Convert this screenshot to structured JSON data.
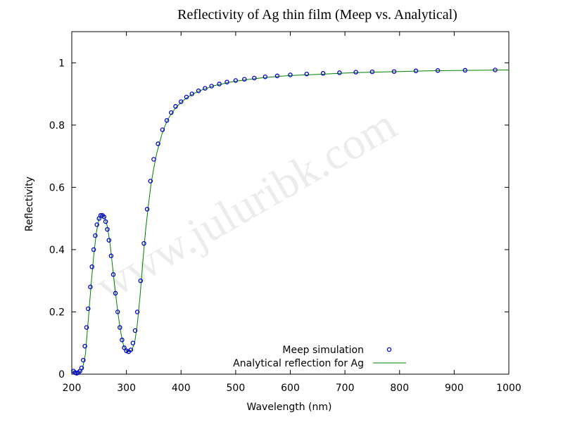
{
  "chart_data": {
    "type": "scatter",
    "title": "Reflectivity of Ag thin film (Meep vs. Analytical)",
    "xlabel": "Wavelength (nm)",
    "ylabel": "Reflectivity",
    "xlim": [
      200,
      1000
    ],
    "ylim": [
      0,
      1.1
    ],
    "x_ticks": [
      200,
      300,
      400,
      500,
      600,
      700,
      800,
      900,
      1000
    ],
    "y_ticks": [
      0,
      0.2,
      0.4,
      0.6,
      0.8,
      1
    ],
    "x_tick_labels": [
      "200",
      "300",
      "400",
      "500",
      "600",
      "700",
      "800",
      "900",
      "1000"
    ],
    "y_tick_labels": [
      "0",
      "0.2",
      "0.4",
      "0.6",
      "0.8",
      "1"
    ],
    "grid": false,
    "legend_position": "bottom-center",
    "watermark": "www.juluribk.com",
    "series": [
      {
        "name": "Meep simulation",
        "style": "markers",
        "color": "#0000cc",
        "x": [
          203,
          206,
          209,
          212,
          215,
          218,
          221,
          224,
          227,
          230,
          234,
          237,
          240,
          243,
          246,
          250,
          253,
          256,
          259,
          262,
          265,
          268,
          272,
          276,
          280,
          284,
          288,
          292,
          296,
          300,
          304,
          308,
          312,
          316,
          320,
          326,
          332,
          338,
          344,
          350,
          358,
          366,
          374,
          382,
          390,
          400,
          410,
          420,
          432,
          444,
          456,
          470,
          484,
          500,
          516,
          534,
          554,
          576,
          600,
          630,
          660,
          690,
          720,
          750,
          790,
          830,
          870,
          920,
          975
        ],
        "y": [
          0.01,
          0.005,
          0.003,
          0.005,
          0.01,
          0.02,
          0.045,
          0.09,
          0.15,
          0.21,
          0.28,
          0.345,
          0.4,
          0.445,
          0.48,
          0.5,
          0.51,
          0.51,
          0.505,
          0.49,
          0.465,
          0.43,
          0.38,
          0.32,
          0.26,
          0.2,
          0.15,
          0.11,
          0.085,
          0.075,
          0.072,
          0.078,
          0.1,
          0.14,
          0.2,
          0.3,
          0.42,
          0.53,
          0.62,
          0.69,
          0.74,
          0.785,
          0.815,
          0.84,
          0.86,
          0.875,
          0.89,
          0.9,
          0.91,
          0.918,
          0.925,
          0.932,
          0.938,
          0.943,
          0.947,
          0.951,
          0.955,
          0.958,
          0.961,
          0.964,
          0.966,
          0.968,
          0.97,
          0.971,
          0.972,
          0.974,
          0.975,
          0.976,
          0.977
        ]
      },
      {
        "name": "Analytical reflection for Ag",
        "style": "line",
        "color": "#008000",
        "x": [
          200,
          205,
          210,
          215,
          220,
          225,
          230,
          235,
          240,
          245,
          250,
          255,
          260,
          265,
          270,
          275,
          280,
          285,
          290,
          295,
          300,
          305,
          310,
          315,
          320,
          325,
          330,
          335,
          340,
          345,
          350,
          355,
          360,
          365,
          370,
          375,
          380,
          390,
          400,
          410,
          420,
          430,
          440,
          450,
          460,
          470,
          480,
          490,
          500,
          525,
          550,
          575,
          600,
          650,
          700,
          750,
          800,
          850,
          900,
          950,
          1000
        ],
        "y": [
          0.012,
          0.006,
          0.003,
          0.007,
          0.02,
          0.065,
          0.17,
          0.28,
          0.38,
          0.455,
          0.5,
          0.512,
          0.505,
          0.475,
          0.42,
          0.34,
          0.26,
          0.19,
          0.13,
          0.09,
          0.075,
          0.072,
          0.078,
          0.1,
          0.16,
          0.25,
          0.36,
          0.46,
          0.54,
          0.61,
          0.66,
          0.705,
          0.74,
          0.77,
          0.795,
          0.815,
          0.83,
          0.855,
          0.873,
          0.887,
          0.898,
          0.907,
          0.914,
          0.92,
          0.926,
          0.93,
          0.934,
          0.938,
          0.941,
          0.947,
          0.952,
          0.956,
          0.959,
          0.963,
          0.967,
          0.97,
          0.972,
          0.974,
          0.975,
          0.976,
          0.977
        ]
      }
    ]
  }
}
